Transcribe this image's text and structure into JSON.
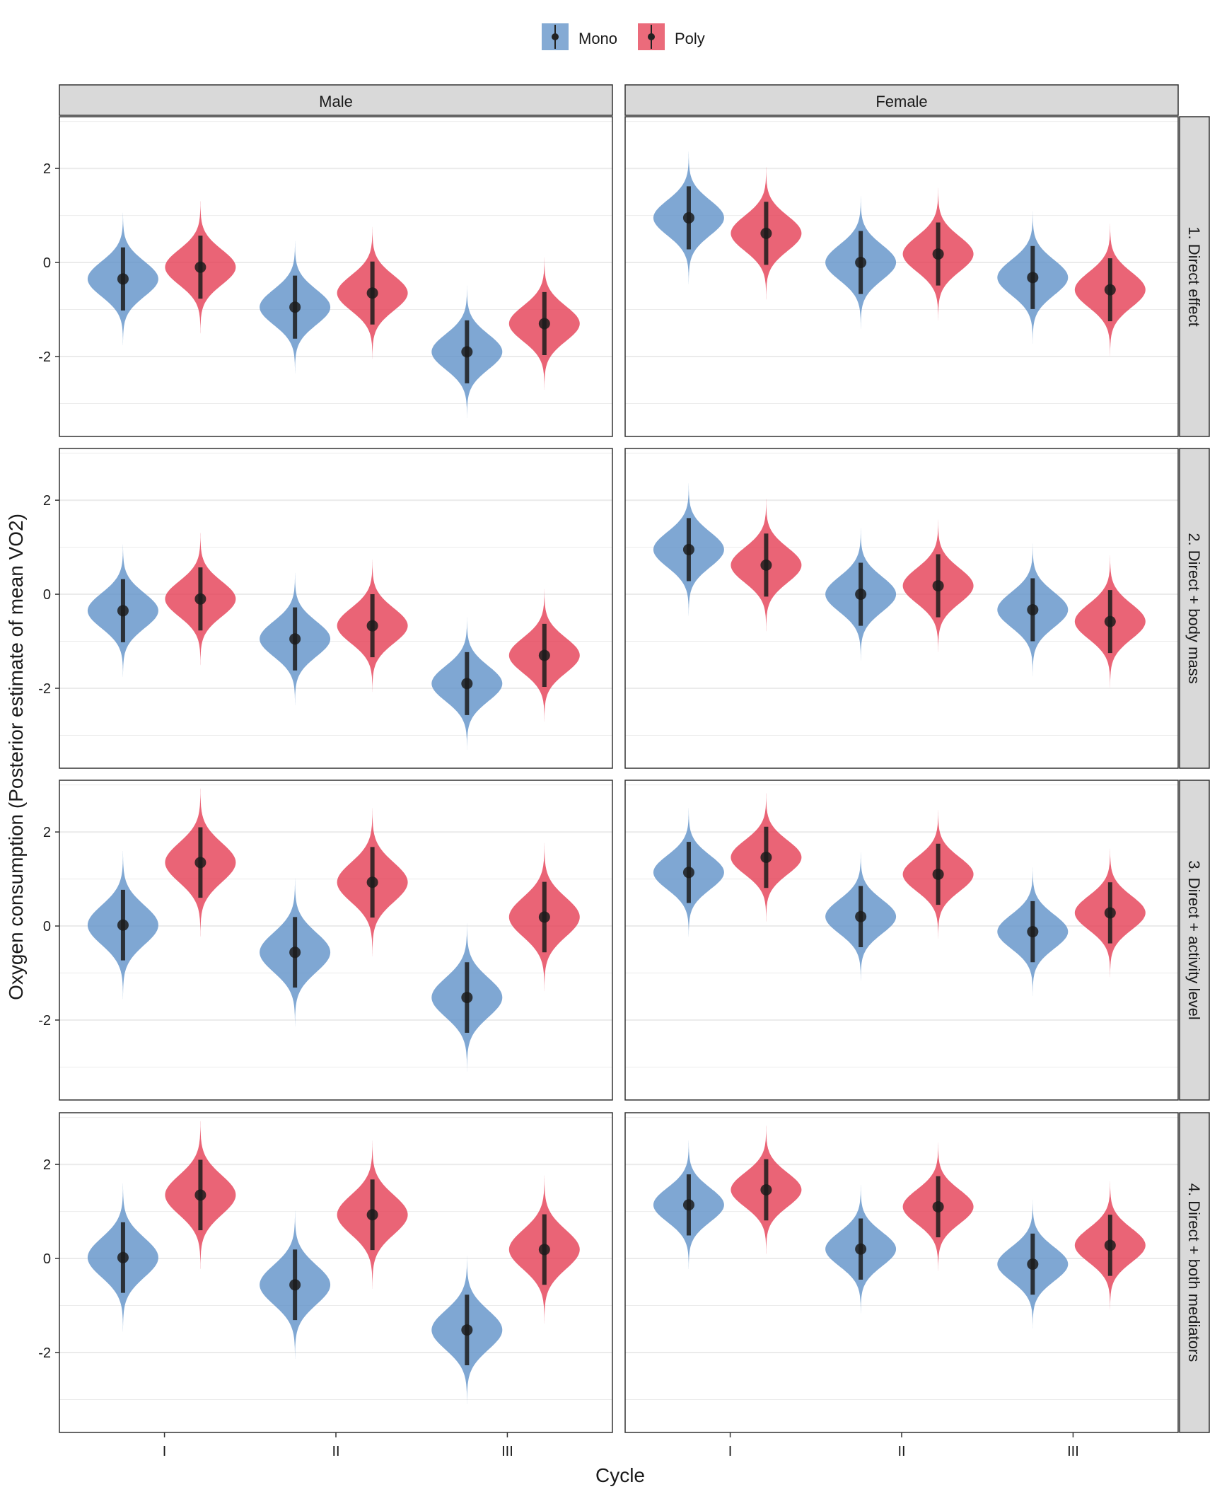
{
  "chart_data": {
    "type": "violin",
    "title": "",
    "xlabel": "Cycle",
    "ylabel": "Oxygen consumption (Posterior estimate of mean VO2)",
    "ylim": [
      -3.7,
      3.1
    ],
    "yticks": [
      2,
      0,
      -2
    ],
    "ytick_labels": [
      "2",
      "0",
      "-2"
    ],
    "grid": true,
    "legend_position": "top",
    "categories": [
      "I",
      "II",
      "III"
    ],
    "columns": [
      "Male",
      "Female"
    ],
    "rows": [
      "1. Direct effect",
      "2. Direct + body mass",
      "3. Direct + activity level",
      "4. Direct + both mediators"
    ],
    "series": [
      {
        "name": "Mono",
        "color": "#5B8EC6"
      },
      {
        "name": "Poly",
        "color": "#E4394F"
      }
    ],
    "panels": [
      {
        "row": 0,
        "col": 0,
        "values": {
          "Mono": [
            -0.35,
            -0.95,
            -1.9
          ],
          "Poly": [
            -0.1,
            -0.65,
            -1.3
          ]
        },
        "interval_half_width": 0.67
      },
      {
        "row": 0,
        "col": 1,
        "values": {
          "Mono": [
            0.95,
            0.0,
            -0.32
          ],
          "Poly": [
            0.62,
            0.18,
            -0.58
          ]
        },
        "interval_half_width": 0.67
      },
      {
        "row": 1,
        "col": 0,
        "values": {
          "Mono": [
            -0.35,
            -0.95,
            -1.9
          ],
          "Poly": [
            -0.1,
            -0.67,
            -1.3
          ]
        },
        "interval_half_width": 0.67
      },
      {
        "row": 1,
        "col": 1,
        "values": {
          "Mono": [
            0.95,
            0.0,
            -0.33
          ],
          "Poly": [
            0.62,
            0.18,
            -0.58
          ]
        },
        "interval_half_width": 0.67
      },
      {
        "row": 2,
        "col": 0,
        "values": {
          "Mono": [
            0.02,
            -0.56,
            -1.52
          ],
          "Poly": [
            1.35,
            0.93,
            0.19
          ]
        },
        "interval_half_width": 0.75
      },
      {
        "row": 2,
        "col": 1,
        "values": {
          "Mono": [
            1.14,
            0.2,
            -0.12
          ],
          "Poly": [
            1.46,
            1.1,
            0.28
          ]
        },
        "interval_half_width": 0.65
      },
      {
        "row": 3,
        "col": 0,
        "values": {
          "Mono": [
            0.02,
            -0.56,
            -1.52
          ],
          "Poly": [
            1.35,
            0.93,
            0.19
          ]
        },
        "interval_half_width": 0.75
      },
      {
        "row": 3,
        "col": 1,
        "values": {
          "Mono": [
            1.14,
            0.2,
            -0.12
          ],
          "Poly": [
            1.46,
            1.1,
            0.28
          ]
        },
        "interval_half_width": 0.65
      }
    ]
  }
}
